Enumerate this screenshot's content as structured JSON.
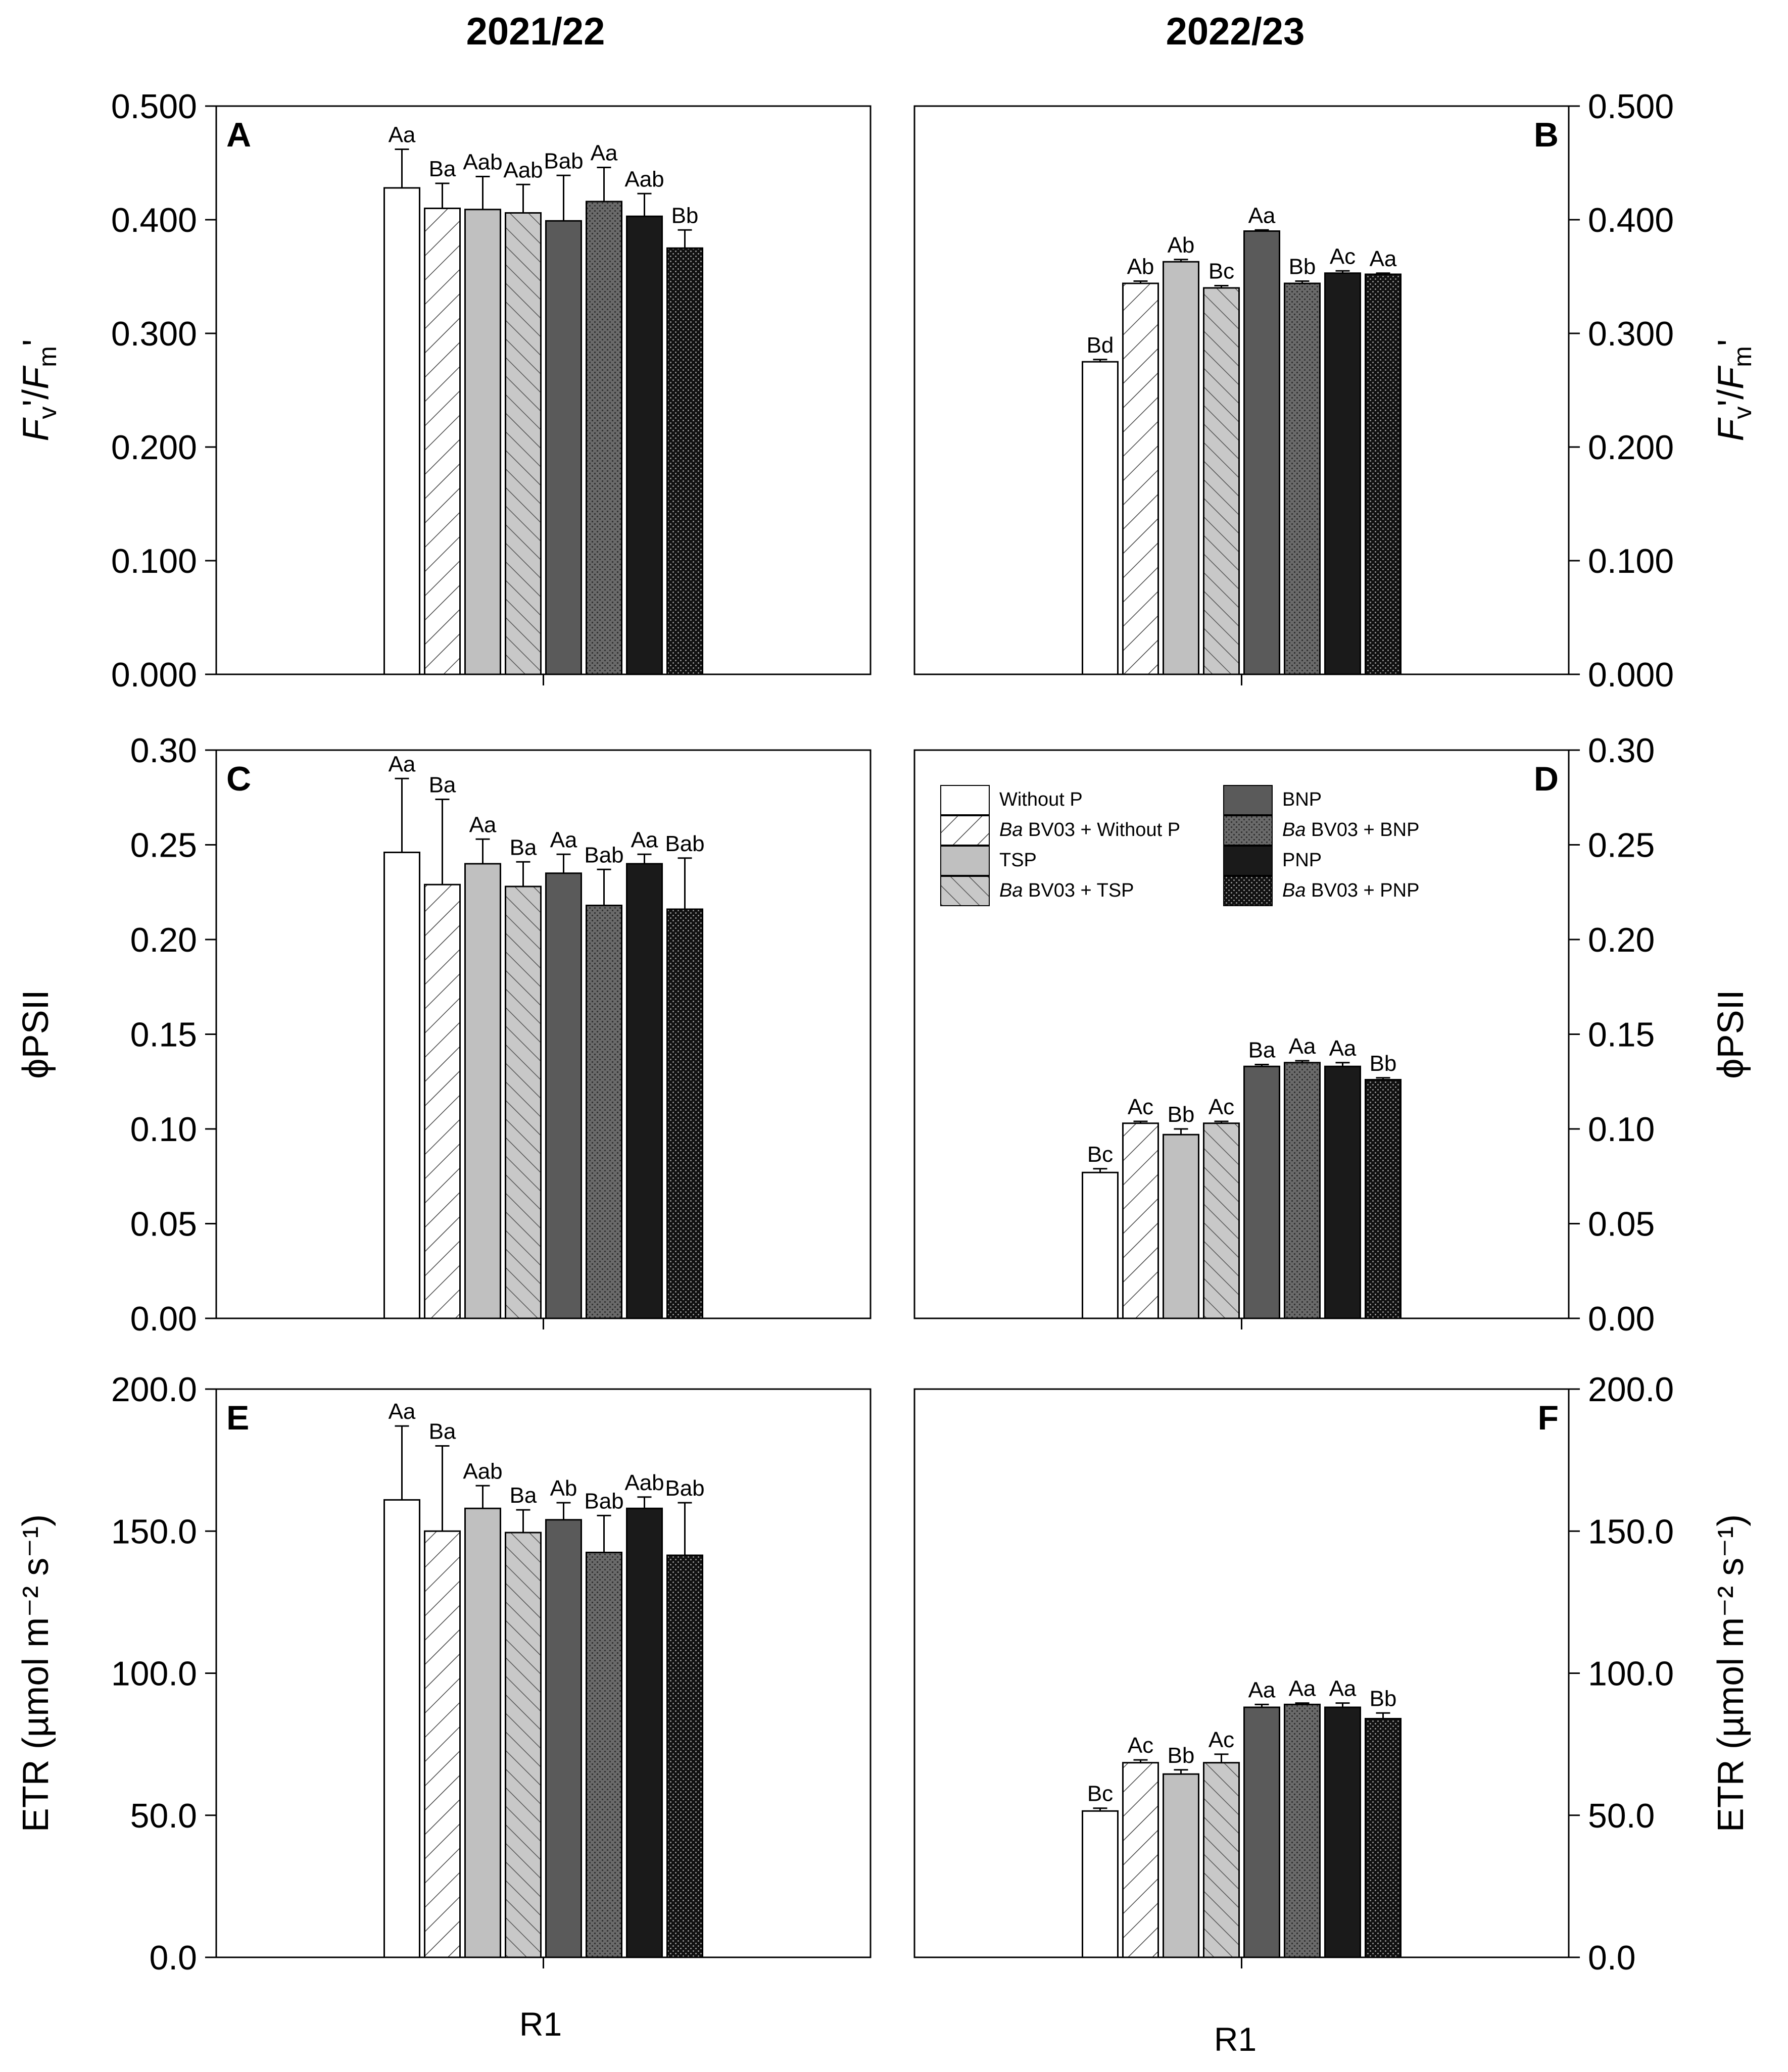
{
  "figure": {
    "column_titles": [
      "2021/22",
      "2022/23"
    ],
    "x_group_label": "R1"
  },
  "treatments": [
    {
      "name": "Without P",
      "prefix": "",
      "label": "Without P"
    },
    {
      "name": "Ba BV03 + Without P",
      "prefix": "Ba",
      "label": " BV03 + Without P"
    },
    {
      "name": "TSP",
      "prefix": "",
      "label": "TSP"
    },
    {
      "name": "Ba BV03 + TSP",
      "prefix": "Ba",
      "label": " BV03 + TSP"
    },
    {
      "name": "BNP",
      "prefix": "",
      "label": "BNP"
    },
    {
      "name": "Ba BV03 + BNP",
      "prefix": "Ba",
      "label": " BV03 + BNP"
    },
    {
      "name": "PNP",
      "prefix": "",
      "label": "PNP"
    },
    {
      "name": "Ba BV03 + PNP",
      "prefix": "Ba",
      "label": " BV03 + PNP"
    }
  ],
  "colors": {
    "without_p": "#ffffff",
    "tsp": "#c0c0c0",
    "bnp": "#5a5a5a",
    "pnp": "#1a1a1a",
    "axis": "#000000"
  },
  "chart_data": [
    {
      "panel": "A",
      "season": "2021/22",
      "type": "bar",
      "ylabel": "Fv'/Fm'",
      "ylim": [
        0,
        0.5
      ],
      "yticks": [
        "0.000",
        "0.100",
        "0.200",
        "0.300",
        "0.400",
        "0.500"
      ],
      "category": "R1",
      "values": [
        0.428,
        0.41,
        0.409,
        0.406,
        0.399,
        0.416,
        0.403,
        0.375
      ],
      "errors": [
        0.034,
        0.022,
        0.029,
        0.025,
        0.04,
        0.03,
        0.02,
        0.016
      ],
      "labels": [
        "Aa",
        "Ba",
        "Aab",
        "Aab",
        "Bab",
        "Aa",
        "Aab",
        "Bb"
      ]
    },
    {
      "panel": "B",
      "season": "2022/23",
      "type": "bar",
      "ylabel": "Fv'/Fm'",
      "ylim": [
        0,
        0.5
      ],
      "yticks": [
        "0.000",
        "0.100",
        "0.200",
        "0.300",
        "0.400",
        "0.500"
      ],
      "category": "R1",
      "values": [
        0.275,
        0.344,
        0.363,
        0.34,
        0.39,
        0.344,
        0.353,
        0.352
      ],
      "errors": [
        0.002,
        0.002,
        0.002,
        0.002,
        0.001,
        0.002,
        0.002,
        0.001
      ],
      "labels": [
        "Bd",
        "Ab",
        "Ab",
        "Bc",
        "Aa",
        "Bb",
        "Ac",
        "Aa"
      ]
    },
    {
      "panel": "C",
      "season": "2021/22",
      "type": "bar",
      "ylabel": "ϕPSII",
      "ylim": [
        0,
        0.3
      ],
      "yticks": [
        "0.00",
        "0.05",
        "0.10",
        "0.15",
        "0.20",
        "0.25",
        "0.30"
      ],
      "category": "R1",
      "values": [
        0.246,
        0.229,
        0.24,
        0.228,
        0.235,
        0.218,
        0.24,
        0.216
      ],
      "errors": [
        0.039,
        0.045,
        0.013,
        0.013,
        0.01,
        0.019,
        0.005,
        0.027
      ],
      "labels": [
        "Aa",
        "Ba",
        "Aa",
        "Ba",
        "Aa",
        "Bab",
        "Aa",
        "Bab"
      ]
    },
    {
      "panel": "D",
      "season": "2022/23",
      "type": "bar",
      "ylabel": "ϕPSII",
      "ylim": [
        0,
        0.3
      ],
      "yticks": [
        "0.00",
        "0.05",
        "0.10",
        "0.15",
        "0.20",
        "0.25",
        "0.30"
      ],
      "category": "R1",
      "values": [
        0.077,
        0.103,
        0.097,
        0.103,
        0.133,
        0.135,
        0.133,
        0.126
      ],
      "errors": [
        0.002,
        0.001,
        0.003,
        0.001,
        0.001,
        0.001,
        0.002,
        0.001
      ],
      "labels": [
        "Bc",
        "Ac",
        "Bb",
        "Ac",
        "Ba",
        "Aa",
        "Aa",
        "Bb"
      ],
      "legend_position": "upper"
    },
    {
      "panel": "E",
      "season": "2021/22",
      "type": "bar",
      "ylabel": "ETR (µmol m⁻² s⁻¹)",
      "ylim": [
        0,
        200
      ],
      "yticks": [
        "0.0",
        "50.0",
        "100.0",
        "150.0",
        "200.0"
      ],
      "category": "R1",
      "values": [
        161.0,
        150.0,
        158.0,
        149.5,
        154.0,
        142.5,
        158.0,
        141.5
      ],
      "errors": [
        26.0,
        30.0,
        8.0,
        8.0,
        6.0,
        13.0,
        4.0,
        18.5
      ],
      "labels": [
        "Aa",
        "Ba",
        "Aab",
        "Ba",
        "Ab",
        "Bab",
        "Aab",
        "Bab"
      ]
    },
    {
      "panel": "F",
      "season": "2022/23",
      "type": "bar",
      "ylabel": "ETR (µmol m⁻² s⁻¹)",
      "ylim": [
        0,
        200
      ],
      "yticks": [
        "0.0",
        "50.0",
        "100.0",
        "150.0",
        "200.0"
      ],
      "category": "R1",
      "values": [
        51.5,
        68.5,
        64.5,
        68.5,
        88.0,
        89.0,
        88.0,
        84.0
      ],
      "errors": [
        1.0,
        1.0,
        1.5,
        3.0,
        1.0,
        0.5,
        1.5,
        2.0
      ],
      "labels": [
        "Bc",
        "Ac",
        "Bb",
        "Ac",
        "Aa",
        "Aa",
        "Aa",
        "Bb"
      ]
    }
  ]
}
